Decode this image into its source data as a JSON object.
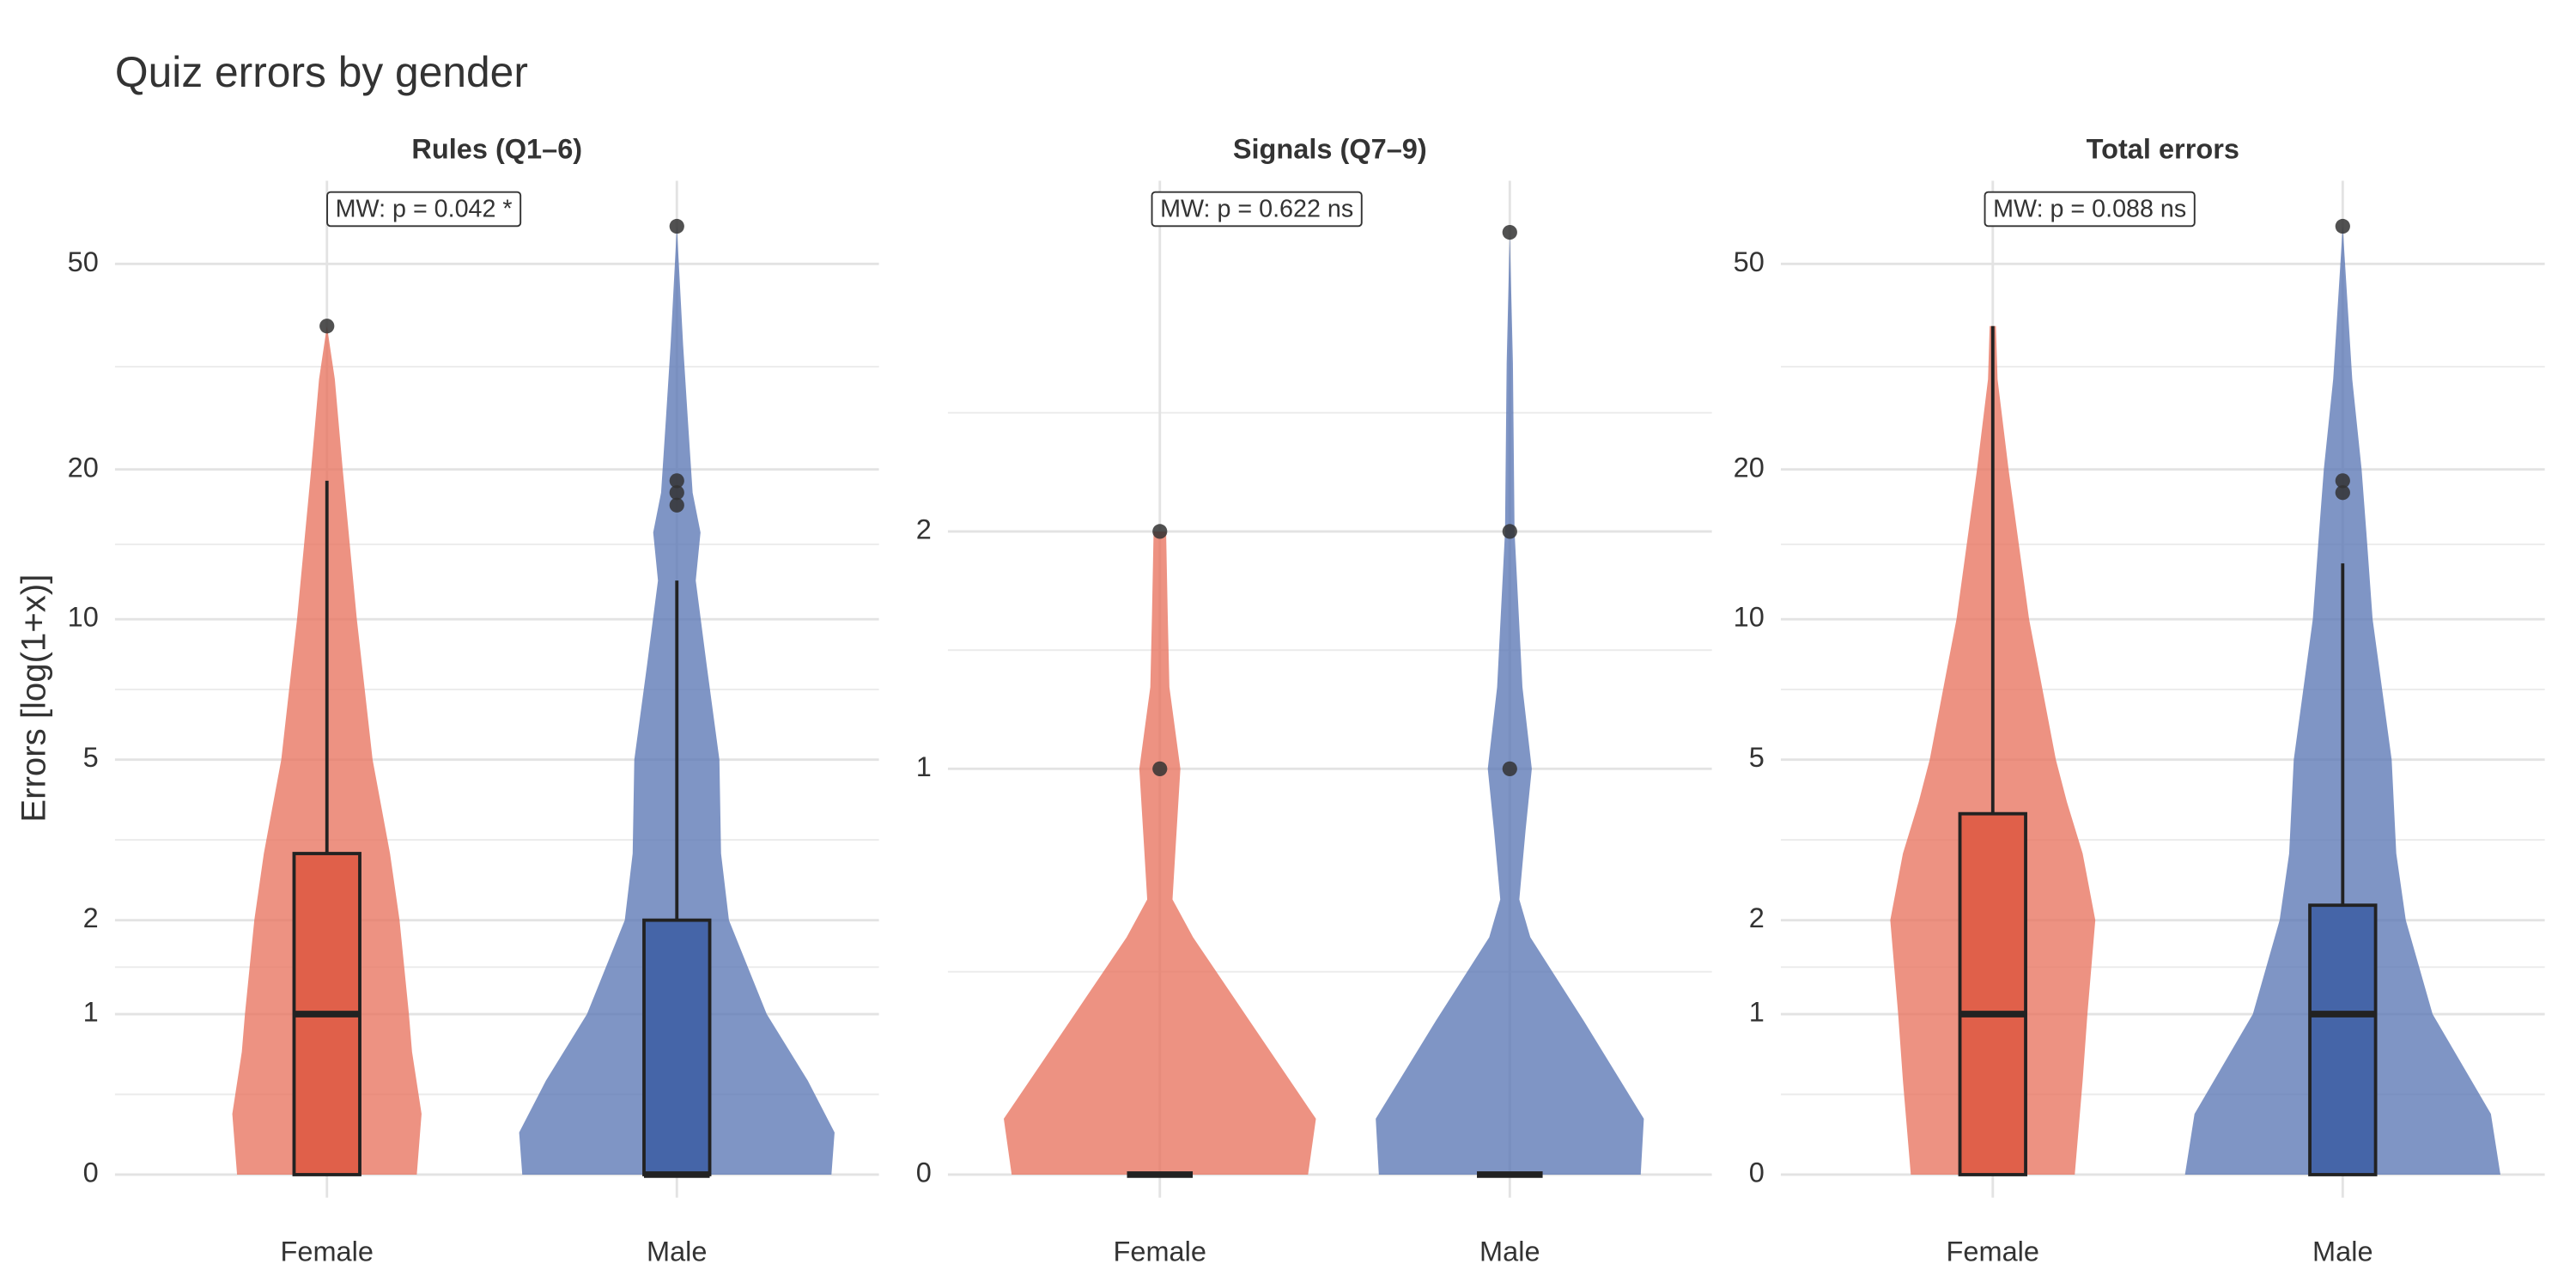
{
  "title": "Quiz errors by gender",
  "y_label": "Errors [log(1+x)]",
  "chart_data": [
    {
      "type": "violin",
      "title": "Rules (Q1–6)",
      "annotation": "MW: p = 0.042  *",
      "categories": [
        "Female",
        "Male"
      ],
      "yscale": "log1p",
      "ylim": [
        0,
        70
      ],
      "yticks": [
        0,
        1,
        2,
        5,
        10,
        20,
        50
      ],
      "grid": true,
      "colors": [
        "#e8735f",
        "#5b77b5"
      ],
      "box_colors": [
        "#e0604a",
        "#4565a8"
      ],
      "groups": [
        {
          "violin": {
            "y": [
              0,
              0.3,
              0.7,
              1,
              2,
              3,
              5,
              10,
              20,
              30,
              38
            ],
            "width": [
              0.57,
              0.6,
              0.54,
              0.52,
              0.46,
              0.4,
              0.29,
              0.19,
              0.1,
              0.05,
              0
            ]
          },
          "box": {
            "lower": 0,
            "q1": 0,
            "median": 1,
            "q3": 3,
            "upper": 19
          },
          "outliers": [
            38
          ]
        },
        {
          "violin": {
            "y": [
              0,
              0.2,
              0.5,
              1,
              2,
              3,
              5,
              8,
              12,
              15,
              18,
              25,
              35,
              59
            ],
            "width": [
              0.98,
              1,
              0.83,
              0.57,
              0.33,
              0.28,
              0.27,
              0.19,
              0.12,
              0.15,
              0.1,
              0.07,
              0.04,
              0
            ]
          },
          "box": {
            "lower": 0,
            "q1": 0,
            "median": 0,
            "q3": 2,
            "upper": 12
          },
          "outliers": [
            17,
            18,
            19,
            59
          ]
        }
      ]
    },
    {
      "type": "violin",
      "title": "Signals (Q7–9)",
      "annotation": "MW: p = 0.622  ns",
      "categories": [
        "Female",
        "Male"
      ],
      "yscale": "log1p",
      "ylim": [
        0,
        4.4
      ],
      "yticks": [
        0,
        1,
        2
      ],
      "grid": true,
      "colors": [
        "#e8735f",
        "#5b77b5"
      ],
      "box_colors": [
        "#e0604a",
        "#4565a8"
      ],
      "groups": [
        {
          "violin": {
            "y": [
              0,
              0.1,
              0.3,
              0.5,
              0.6,
              0.75,
              1,
              1.3,
              1.6,
              2
            ],
            "width": [
              0.94,
              0.99,
              0.57,
              0.21,
              0.08,
              0.1,
              0.13,
              0.06,
              0.05,
              0.04
            ]
          },
          "box": {
            "lower": 0,
            "q1": 0,
            "median": 0,
            "q3": 0,
            "upper": 0
          },
          "outliers": [
            1,
            2
          ]
        },
        {
          "violin": {
            "y": [
              0,
              0.1,
              0.3,
              0.5,
              0.6,
              0.8,
              1,
              1.3,
              2,
              3,
              4
            ],
            "width": [
              0.83,
              0.85,
              0.47,
              0.13,
              0.06,
              0.1,
              0.14,
              0.08,
              0.03,
              0.02,
              0
            ]
          },
          "box": {
            "lower": 0,
            "q1": 0,
            "median": 0,
            "q3": 0,
            "upper": 0
          },
          "outliers": [
            1,
            2,
            4
          ]
        }
      ]
    },
    {
      "type": "violin",
      "title": "Total errors",
      "annotation": "MW: p = 0.088  ns",
      "categories": [
        "Female",
        "Male"
      ],
      "yscale": "log1p",
      "ylim": [
        0,
        70
      ],
      "yticks": [
        0,
        1,
        2,
        5,
        10,
        20,
        50
      ],
      "grid": true,
      "colors": [
        "#e8735f",
        "#5b77b5"
      ],
      "box_colors": [
        "#e0604a",
        "#4565a8"
      ],
      "groups": [
        {
          "violin": {
            "y": [
              0,
              0.5,
              1,
              2,
              3,
              4,
              5,
              10,
              20,
              30,
              38
            ],
            "width": [
              0.52,
              0.57,
              0.6,
              0.65,
              0.57,
              0.47,
              0.4,
              0.23,
              0.1,
              0.03,
              0.02
            ]
          },
          "box": {
            "lower": 0,
            "q1": 0,
            "median": 1,
            "q3": 3.75,
            "upper": 38
          },
          "outliers": []
        },
        {
          "violin": {
            "y": [
              0,
              0.3,
              1,
              2,
              3,
              5,
              10,
              15,
              20,
              30,
              59
            ],
            "width": [
              1,
              0.94,
              0.57,
              0.4,
              0.34,
              0.31,
              0.19,
              0.15,
              0.12,
              0.06,
              0
            ]
          },
          "box": {
            "lower": 0,
            "q1": 0,
            "median": 1,
            "q3": 2.2,
            "upper": 13
          },
          "outliers": [
            18,
            19,
            59
          ]
        }
      ]
    }
  ]
}
